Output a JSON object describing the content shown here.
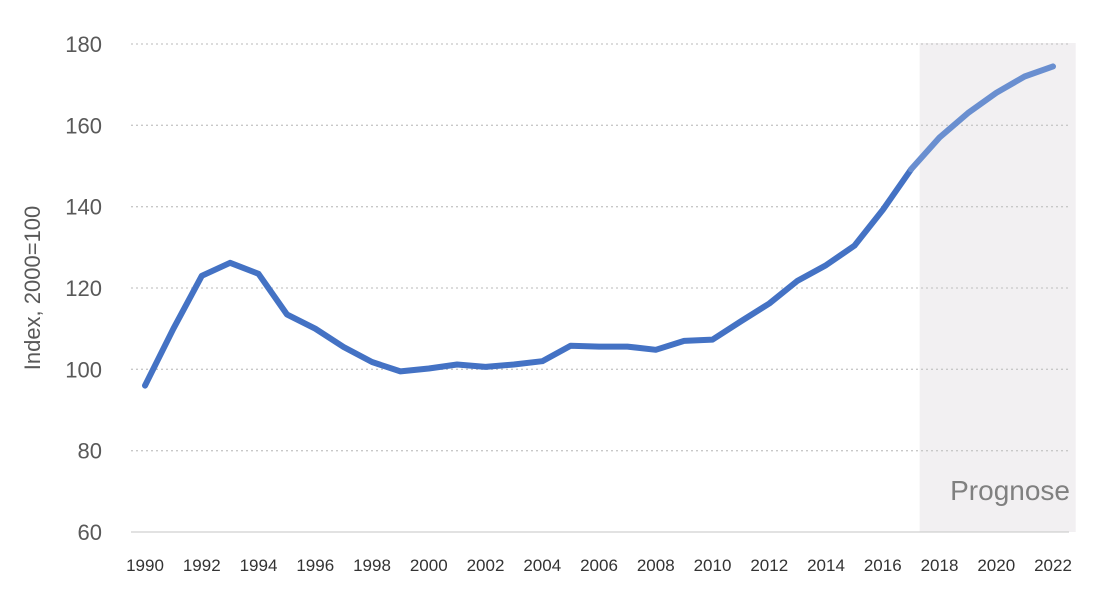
{
  "chart_data": {
    "type": "line",
    "ylabel": "Index, 2000=100",
    "xlabel": "",
    "ylim": [
      60,
      180
    ],
    "yticks": [
      60,
      80,
      100,
      120,
      140,
      160,
      180
    ],
    "xticks": [
      1990,
      1992,
      1994,
      1996,
      1998,
      2000,
      2002,
      2004,
      2006,
      2008,
      2010,
      2012,
      2014,
      2016,
      2018,
      2020,
      2022
    ],
    "xlim": [
      1990,
      2022
    ],
    "grid": "horizontal dotted",
    "line_color": "#4472C4",
    "forecast_color": "#6A8FD0",
    "shade_color": "#F2F0F2",
    "forecast_region": {
      "label": "Prognose",
      "from": 2017.3,
      "to": 2022.8
    },
    "series": [
      {
        "x": [
          1990,
          1991,
          1992,
          1993,
          1994,
          1995,
          1996,
          1997,
          1998,
          1999,
          2000,
          2001,
          2002,
          2003,
          2004,
          2005,
          2006,
          2007,
          2008,
          2009,
          2010,
          2011,
          2012,
          2013,
          2014,
          2015,
          2016,
          2017,
          2018,
          2019,
          2020,
          2021,
          2022
        ],
        "values": [
          96,
          110,
          123,
          126.2,
          123.5,
          113.5,
          110,
          105.5,
          101.8,
          99.5,
          100.2,
          101.2,
          100.6,
          101.2,
          102,
          105.8,
          105.6,
          105.6,
          104.8,
          107,
          107.3,
          111.8,
          116.2,
          121.8,
          125.6,
          130.4,
          139.2,
          149.2,
          157,
          163,
          168,
          172,
          174.5
        ]
      }
    ]
  }
}
